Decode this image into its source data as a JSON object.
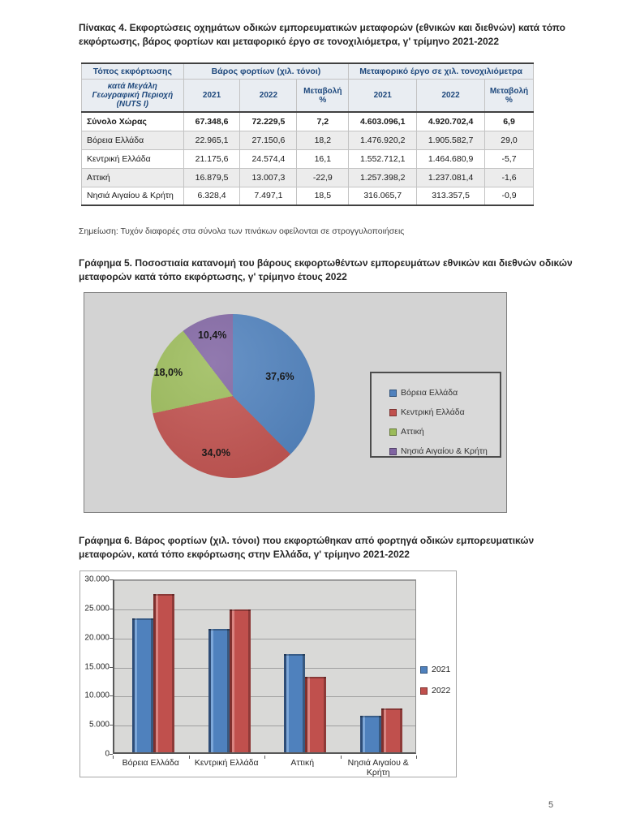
{
  "page": {
    "number": "5"
  },
  "colors": {
    "blue": "#4F81BD",
    "red": "#C0504D",
    "green": "#9BBB59",
    "purple": "#8064A2",
    "header_bg": "#E9EDF2",
    "header_text": "#1F497D"
  },
  "table_section": {
    "title": "Πίνακας 4. Εκφορτώσεις οχημάτων οδικών εμπορευματικών μεταφορών (εθνικών και διεθνών) κατά τόπο εκφόρτωσης, βάρος φορτίων και μεταφορικό έργο σε τονοχιλιόμετρα, γ' τρίμηνο 2021-2022",
    "note": "Σημείωση: Τυχόν διαφορές στα σύνολα των πινάκων οφείλονται σε στρογγυλοποιήσεις",
    "table": {
      "header": {
        "corner": "Τόπος εκφόρτωσης",
        "group_weight": "Βάρος φορτίων (χιλ. τόνοι)",
        "group_tkm": "Μεταφορικό έργο σε χιλ. τονοχιλιόμετρα",
        "nuts": "κατά Μεγάλη Γεωγραφική Περιοχή (NUTS I)",
        "subcols": [
          "2021",
          "2022",
          "Μεταβολή %",
          "2021",
          "2022",
          "Μεταβολή %"
        ]
      },
      "rows": [
        {
          "label": "Σύνολο Χώρας",
          "bold": true,
          "alt": false,
          "values": [
            "67.348,6",
            "72.229,5",
            "7,2",
            "4.603.096,1",
            "4.920.702,4",
            "6,9"
          ]
        },
        {
          "label": "Βόρεια Ελλάδα",
          "bold": false,
          "alt": true,
          "values": [
            "22.965,1",
            "27.150,6",
            "18,2",
            "1.476.920,2",
            "1.905.582,7",
            "29,0"
          ]
        },
        {
          "label": "Κεντρική Ελλάδα",
          "bold": false,
          "alt": false,
          "values": [
            "21.175,6",
            "24.574,4",
            "16,1",
            "1.552.712,1",
            "1.464.680,9",
            "-5,7"
          ]
        },
        {
          "label": "Αττική",
          "bold": false,
          "alt": true,
          "values": [
            "16.879,5",
            "13.007,3",
            "-22,9",
            "1.257.398,2",
            "1.237.081,4",
            "-1,6"
          ]
        },
        {
          "label": "Νησιά Αιγαίου & Κρήτη",
          "bold": false,
          "alt": false,
          "values": [
            "6.328,4",
            "7.497,1",
            "18,5",
            "316.065,7",
            "313.357,5",
            "-0,9"
          ]
        }
      ]
    }
  },
  "pie_section": {
    "title": "Γράφημα 5. Ποσοστιαία κατανομή του βάρους εκφορτωθέντων εμπορευμάτων εθνικών και διεθνών οδικών μεταφορών κατά τόπο εκφόρτωσης, γ' τρίμηνο έτους 2022"
  },
  "bar_section": {
    "title": "Γράφημα 6. Βάρος φορτίων (χιλ. τόνοι) που εκφορτώθηκαν από φορτηγά οδικών εμπορευματικών μεταφορών, κατά τόπο εκφόρτωσης στην Ελλάδα, γ' τρίμηνο 2021-2022"
  },
  "chart_data": [
    {
      "type": "pie",
      "title": "Γράφημα 5. Ποσοστιαία κατανομή του βάρους εκφορτωθέντων εμπορευμάτων εθνικών και διεθνών οδικών μεταφορών κατά τόπο εκφόρτωσης, γ' τρίμηνο έτους 2022",
      "labels": [
        "Βόρεια Ελλάδα",
        "Κεντρική Ελλάδα",
        "Αττική",
        "Νησιά Αιγαίου & Κρήτη"
      ],
      "values": [
        37.6,
        34.0,
        18.0,
        10.4
      ],
      "value_labels": [
        "37,6%",
        "34,0%",
        "18,0%",
        "10,4%"
      ],
      "colors": [
        "#4F81BD",
        "#C0504D",
        "#9BBB59",
        "#8064A2"
      ],
      "start_angle_deg": 0,
      "direction": "clockwise",
      "legend_position": "right"
    },
    {
      "type": "bar",
      "title": "Γράφημα 6. Βάρος φορτίων (χιλ. τόνοι) που εκφορτώθηκαν από φορτηγά οδικών εμπορευματικών μεταφορών, κατά τόπο εκφόρτωσης στην Ελλάδα, γ' τρίμηνο 2021-2022",
      "categories": [
        "Βόρεια Ελλάδα",
        "Κεντρική Ελλάδα",
        "Αττική",
        "Νησιά Αιγαίου & Κρήτη"
      ],
      "series": [
        {
          "name": "2021",
          "color": "#4F81BD",
          "values": [
            22965.1,
            21175.6,
            16879.5,
            6328.4
          ]
        },
        {
          "name": "2022",
          "color": "#C0504D",
          "values": [
            27150.6,
            24574.4,
            13007.3,
            7497.1
          ]
        }
      ],
      "ylim": [
        0,
        30000
      ],
      "ytick_step": 5000,
      "ytick_labels": [
        "0",
        "5.000",
        "10.000",
        "15.000",
        "20.000",
        "25.000",
        "30.000"
      ],
      "grid": true,
      "legend_position": "right"
    }
  ]
}
